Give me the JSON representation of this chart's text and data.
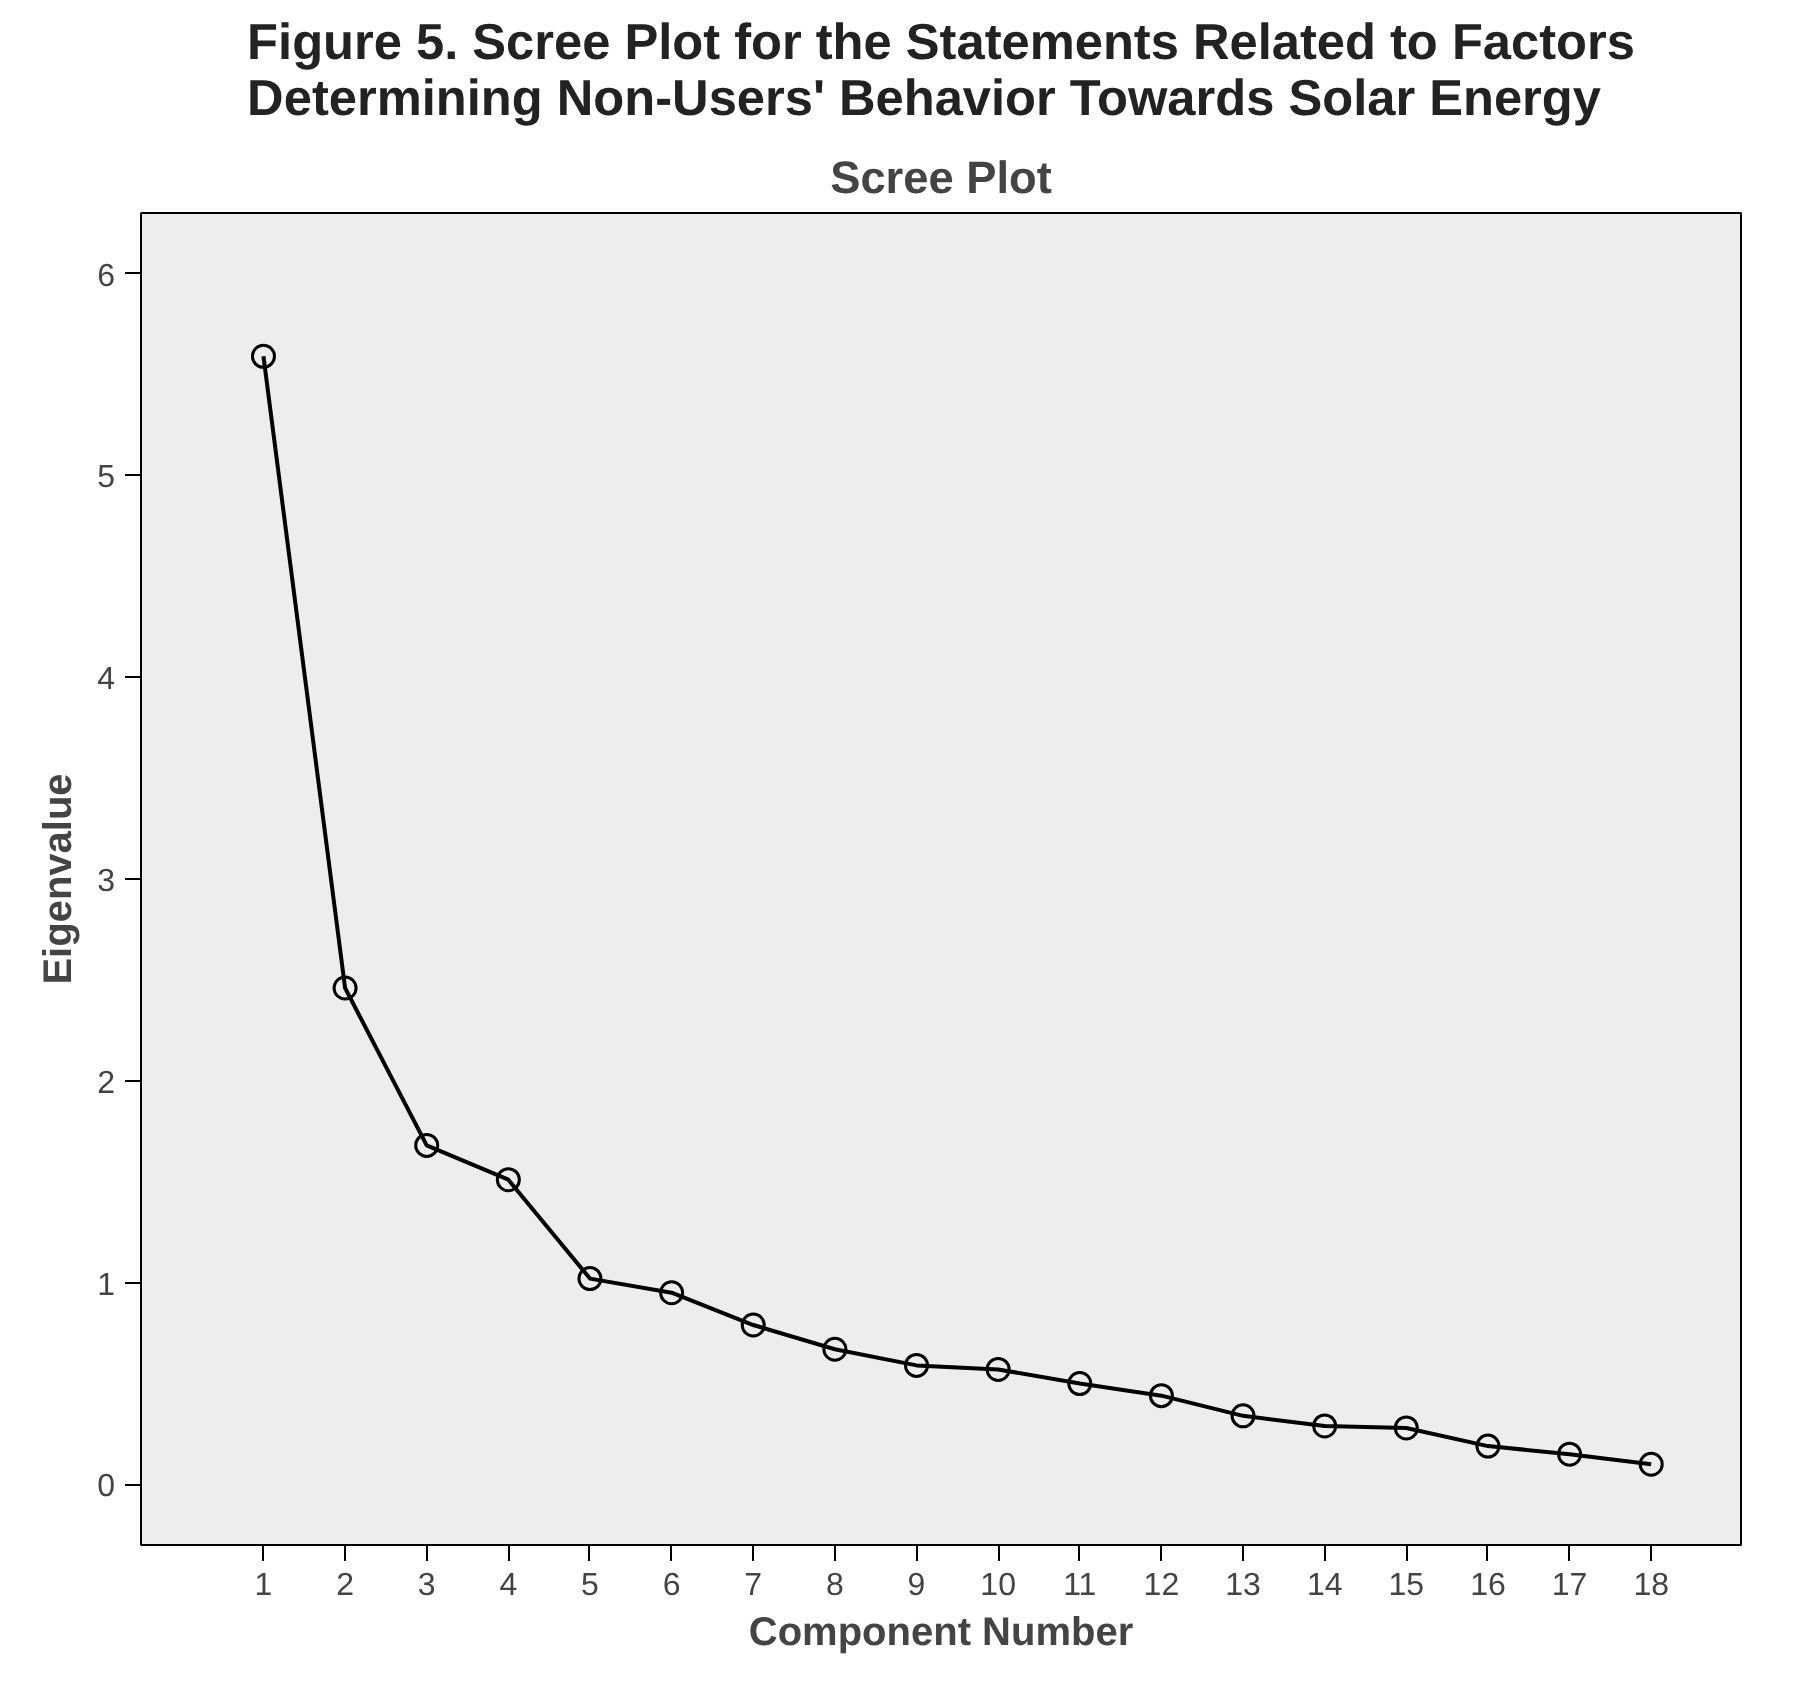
{
  "chart_data": {
    "type": "line",
    "title": "Figure 5. Scree Plot for the Statements Related to Factors Determining Non-Users' Behavior Towards Solar Energy",
    "subtitle": "Scree Plot",
    "xlabel": "Component Number",
    "ylabel": "Eigenvalue",
    "x": [
      1,
      2,
      3,
      4,
      5,
      6,
      7,
      8,
      9,
      10,
      11,
      12,
      13,
      14,
      15,
      16,
      17,
      18
    ],
    "series": [
      {
        "color": "#000000",
        "values": [
          5.59,
          2.46,
          1.68,
          1.51,
          1.02,
          0.95,
          0.79,
          0.67,
          0.59,
          0.57,
          0.5,
          0.44,
          0.34,
          0.29,
          0.28,
          0.19,
          0.15,
          0.1
        ]
      }
    ],
    "xlim": [
      -0.5,
      19.1
    ],
    "xticks": [
      1,
      2,
      3,
      4,
      5,
      6,
      7,
      8,
      9,
      10,
      11,
      12,
      13,
      14,
      15,
      16,
      17,
      18
    ],
    "ylim": [
      -0.3,
      6.3
    ],
    "yticks": [
      0,
      1,
      2,
      3,
      4,
      5,
      6
    ],
    "grid": false,
    "marker": "circle",
    "line_style": "solid"
  }
}
